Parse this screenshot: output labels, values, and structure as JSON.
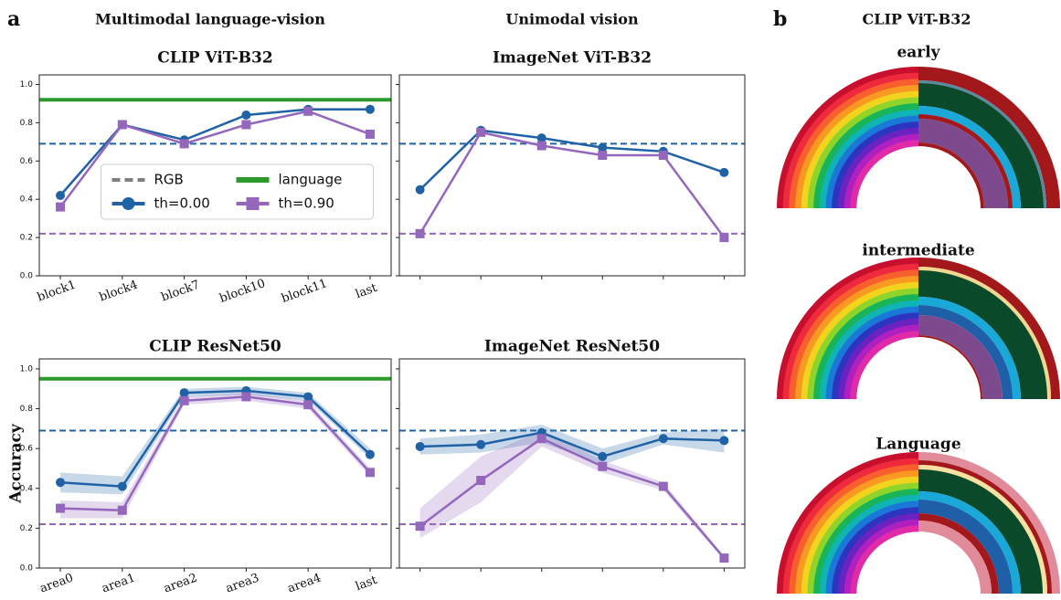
{
  "figure": {
    "panel_a": "a",
    "panel_b": "b",
    "group_left": "Multimodal language-vision",
    "group_right": "Unimodal vision",
    "panel_b_title": "CLIP ViT-B32",
    "rainbows": [
      "early",
      "intermediate",
      "Language"
    ]
  },
  "chart_data": [
    {
      "type": "line",
      "title": "CLIP ViT-B32",
      "categories": [
        "block1",
        "block4",
        "block7",
        "block10",
        "block11",
        "last"
      ],
      "ylim": [
        0,
        1.05
      ],
      "yticks": [
        {
          "value": 0,
          "label": "0.0"
        },
        0.2,
        0.4,
        0.6,
        0.8,
        {
          "value": 1,
          "label": "1.0"
        }
      ],
      "ytick_labels": true,
      "series": [
        {
          "name": "th=0.00",
          "color": "#1f62a6",
          "marker": "circle",
          "values": [
            0.42,
            0.79,
            0.71,
            0.84,
            0.87,
            0.87
          ]
        },
        {
          "name": "th=0.90",
          "color": "#9467bd",
          "marker": "square",
          "values": [
            0.36,
            0.79,
            0.69,
            0.79,
            0.86,
            0.74
          ]
        }
      ],
      "rgb_baseline": {
        "name": "RGB",
        "values": [
          0.69,
          0.22
        ]
      },
      "language_baseline": {
        "name": "language",
        "value": 0.92,
        "color": "#2b9a2b"
      },
      "legend": "center"
    },
    {
      "type": "line",
      "title": "ImageNet ViT-B32",
      "categories": [
        null,
        null,
        null,
        null,
        null,
        null
      ],
      "ylim": [
        0,
        1.05
      ],
      "yticks": [
        0,
        0.2,
        0.4,
        0.6,
        0.8,
        1
      ],
      "ytick_labels": false,
      "series": [
        {
          "color": "#1f62a6",
          "marker": "circle",
          "values": [
            0.45,
            0.76,
            0.72,
            0.67,
            0.65,
            0.54
          ]
        },
        {
          "color": "#9467bd",
          "marker": "square",
          "values": [
            0.22,
            0.75,
            0.68,
            0.63,
            0.63,
            0.2
          ]
        }
      ],
      "rgb_baseline": {
        "values": [
          0.69,
          0.22
        ]
      }
    },
    {
      "type": "line",
      "title": "CLIP ResNet50",
      "ylabel": "Accuracy",
      "categories": [
        "area0",
        "area1",
        "area2",
        "area3",
        "area4",
        "last"
      ],
      "ylim": [
        0,
        1.05
      ],
      "yticks": [
        {
          "value": 0,
          "label": "0.0"
        },
        0.2,
        0.4,
        0.6,
        0.8,
        {
          "value": 1,
          "label": "1.0"
        }
      ],
      "ytick_labels": true,
      "series": [
        {
          "color": "#1f62a6",
          "marker": "circle",
          "values": [
            0.43,
            0.41,
            0.88,
            0.89,
            0.86,
            0.57
          ],
          "lower": [
            0.38,
            0.37,
            0.86,
            0.87,
            0.84,
            0.55
          ],
          "upper": [
            0.48,
            0.46,
            0.9,
            0.91,
            0.88,
            0.6
          ]
        },
        {
          "color": "#9467bd",
          "marker": "square",
          "values": [
            0.3,
            0.29,
            0.84,
            0.86,
            0.82,
            0.48
          ],
          "lower": [
            0.25,
            0.25,
            0.82,
            0.84,
            0.8,
            0.46
          ],
          "upper": [
            0.34,
            0.33,
            0.86,
            0.88,
            0.84,
            0.5
          ]
        }
      ],
      "rgb_baseline": {
        "values": [
          0.69,
          0.22
        ]
      },
      "language_baseline": {
        "value": 0.95,
        "color": "#2b9a2b"
      }
    },
    {
      "type": "line",
      "title": "ImageNet ResNet50",
      "categories": [
        null,
        null,
        null,
        null,
        null,
        null
      ],
      "ylim": [
        0,
        1.05
      ],
      "yticks": [
        0,
        0.2,
        0.4,
        0.6,
        0.8,
        1
      ],
      "ytick_labels": false,
      "series": [
        {
          "color": "#1f62a6",
          "marker": "circle",
          "values": [
            0.61,
            0.62,
            0.68,
            0.56,
            0.65,
            0.64
          ],
          "lower": [
            0.57,
            0.58,
            0.63,
            0.52,
            0.62,
            0.58
          ],
          "upper": [
            0.65,
            0.67,
            0.72,
            0.6,
            0.68,
            0.7
          ]
        },
        {
          "color": "#9467bd",
          "marker": "square",
          "values": [
            0.21,
            0.44,
            0.65,
            0.51,
            0.41,
            0.05
          ],
          "lower": [
            0.15,
            0.33,
            0.61,
            0.48,
            0.39,
            0.04
          ],
          "upper": [
            0.3,
            0.56,
            0.69,
            0.54,
            0.43,
            0.06
          ]
        }
      ],
      "rgb_baseline": {
        "values": [
          0.69,
          0.22
        ]
      }
    }
  ]
}
